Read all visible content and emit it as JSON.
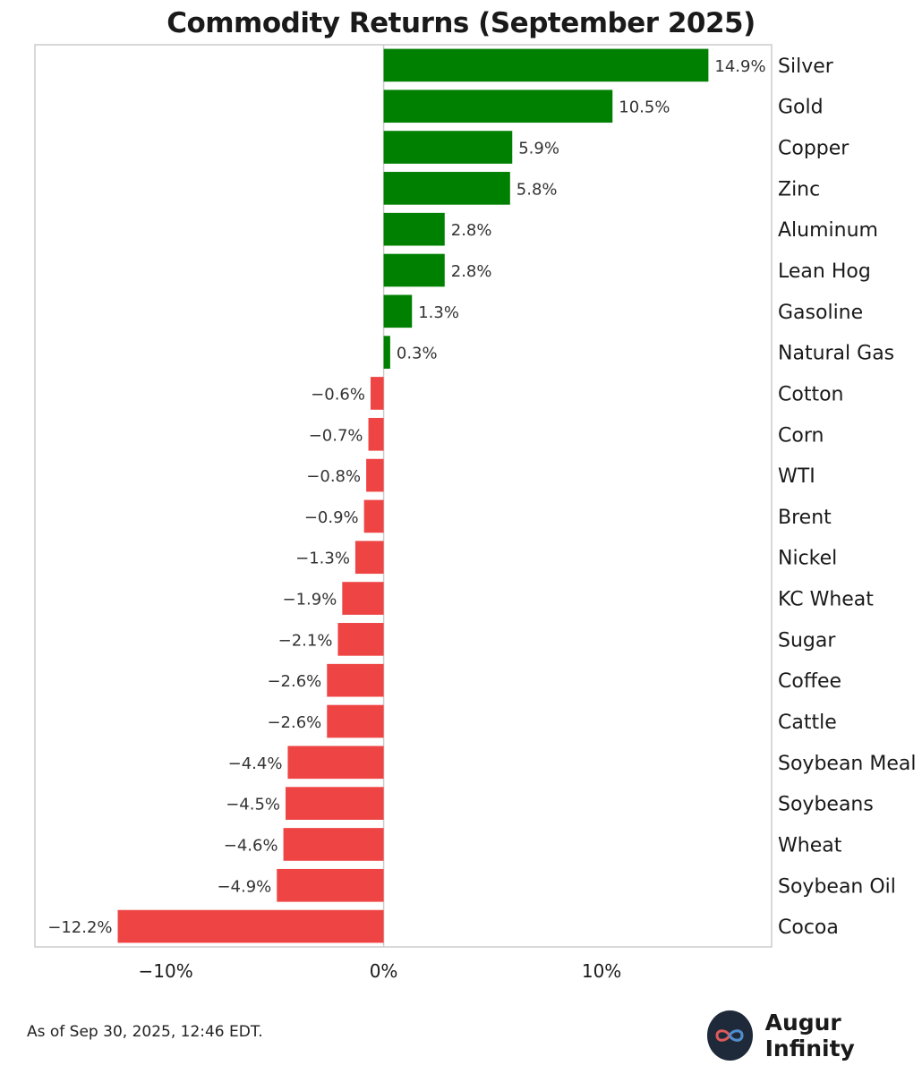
{
  "chart_data": {
    "type": "bar",
    "orientation": "horizontal",
    "title": "Commodity Returns (September 2025)",
    "categories": [
      "Silver",
      "Gold",
      "Copper",
      "Zinc",
      "Aluminum",
      "Lean Hog",
      "Gasoline",
      "Natural Gas",
      "Cotton",
      "Corn",
      "WTI",
      "Brent",
      "Nickel",
      "KC Wheat",
      "Sugar",
      "Coffee",
      "Cattle",
      "Soybean Meal",
      "Soybeans",
      "Wheat",
      "Soybean Oil",
      "Cocoa"
    ],
    "values": [
      14.9,
      10.5,
      5.9,
      5.8,
      2.8,
      2.8,
      1.3,
      0.3,
      -0.6,
      -0.7,
      -0.8,
      -0.9,
      -1.3,
      -1.9,
      -2.1,
      -2.6,
      -2.6,
      -4.4,
      -4.5,
      -4.6,
      -4.9,
      -12.2
    ],
    "value_labels": [
      "14.9%",
      "10.5%",
      "5.9%",
      "5.8%",
      "2.8%",
      "2.8%",
      "1.3%",
      "0.3%",
      "−0.6%",
      "−0.7%",
      "−0.8%",
      "−0.9%",
      "−1.3%",
      "−1.9%",
      "−2.1%",
      "−2.6%",
      "−2.6%",
      "−4.4%",
      "−4.5%",
      "−4.6%",
      "−4.9%",
      "−12.2%"
    ],
    "xlim": [
      -16,
      17.8
    ],
    "x_ticks": [
      -10,
      0,
      10
    ],
    "x_tick_labels": [
      "−10%",
      "0%",
      "10%"
    ],
    "xlabel": "",
    "ylabel": "",
    "grid": false,
    "colors": {
      "positive": "#008000",
      "negative": "#ee4444",
      "zero_line": "#cccccc",
      "frame": "#cccccc"
    }
  },
  "footnote": "As of Sep 30, 2025, 12:46 EDT.",
  "brand": {
    "name": "Augur Infinity",
    "logo_icon": "infinity-icon"
  }
}
